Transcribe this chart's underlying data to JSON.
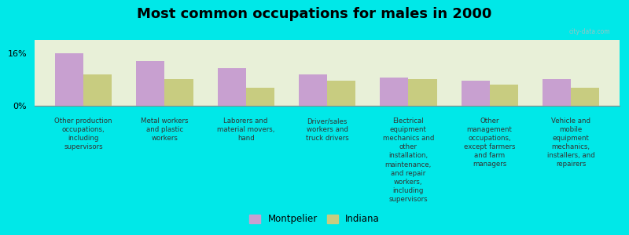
{
  "title": "Most common occupations for males in 2000",
  "categories": [
    "Other production\noccupations,\nincluding\nsupervisors",
    "Metal workers\nand plastic\nworkers",
    "Laborers and\nmaterial movers,\nhand",
    "Driver/sales\nworkers and\ntruck drivers",
    "Electrical\nequipment\nmechanics and\nother\ninstallation,\nmaintenance,\nand repair\nworkers,\nincluding\nsupervisors",
    "Other\nmanagement\noccupations,\nexcept farmers\nand farm\nmanagers",
    "Vehicle and\nmobile\nequipment\nmechanics,\ninstallers, and\nrepairers"
  ],
  "montpelier_values": [
    16.0,
    13.5,
    11.5,
    9.5,
    8.5,
    7.5,
    8.0
  ],
  "indiana_values": [
    9.5,
    8.0,
    5.5,
    7.5,
    8.0,
    6.5,
    5.5
  ],
  "montpelier_color": "#c8a0d0",
  "indiana_color": "#c8cc80",
  "background_color": "#00e8e8",
  "plot_bg_color": "#e8f0d8",
  "ylim": [
    0,
    20
  ],
  "ytick_values": [
    0,
    16
  ],
  "ytick_labels": [
    "0%",
    "16%"
  ],
  "bar_width": 0.35,
  "legend_labels": [
    "Montpelier",
    "Indiana"
  ],
  "title_fontsize": 13
}
